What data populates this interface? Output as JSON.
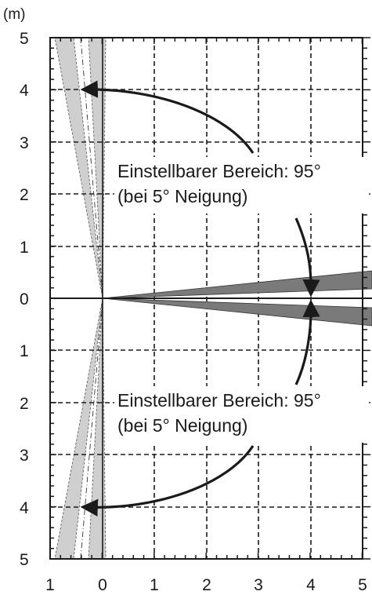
{
  "figure": {
    "unit_label": "(m)",
    "y_tick_labels_top": [
      "5",
      "4",
      "3",
      "2",
      "1"
    ],
    "y_tick_label_zero": "0",
    "y_tick_labels_bottom": [
      "1",
      "2",
      "3",
      "4",
      "5"
    ],
    "x_tick_labels": [
      "1",
      "0",
      "1",
      "2",
      "3",
      "4",
      "5"
    ],
    "annotation_upper": {
      "line1": "Einstellbarer Bereich: 95°",
      "line2": "(bei 5° Neigung)"
    },
    "annotation_lower": {
      "line1": "Einstellbarer Bereich: 95°",
      "line2": "(bei 5° Neigung)"
    }
  },
  "colors": {
    "beam_dark": "#7a7a7a",
    "beam_light": "#cfcfcf",
    "grid": "#1a1a1a",
    "text": "#1a1a1a"
  }
}
